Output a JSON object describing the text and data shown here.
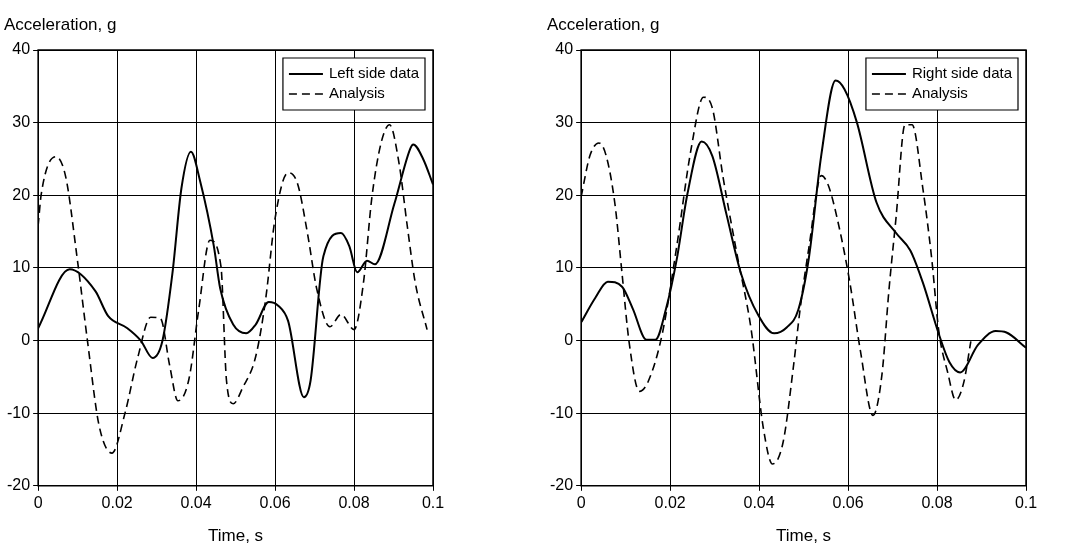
{
  "chart_data": [
    {
      "type": "line",
      "xlabel": "Time, s",
      "ylabel": "Acceleration, g",
      "xlim": [
        0,
        0.1
      ],
      "xticks": [
        0,
        0.02,
        0.04,
        0.06,
        0.08,
        0.1
      ],
      "ylim": [
        -20,
        40
      ],
      "yticks": [
        -20,
        -10,
        0,
        10,
        20,
        30,
        40
      ],
      "grid": true,
      "legend": "top right",
      "marker": "none",
      "series": [
        {
          "name": "Left side data",
          "color": "#000000",
          "line_style": "solid",
          "x": [
            0,
            0.008,
            0.0145,
            0.0177,
            0.0226,
            0.026,
            0.029,
            0.0315,
            0.034,
            0.0363,
            0.0387,
            0.041,
            0.0445,
            0.0461,
            0.0494,
            0.0527,
            0.0551,
            0.0584,
            0.0608,
            0.0633,
            0.0673,
            0.069,
            0.0722,
            0.0767,
            0.0788,
            0.0808,
            0.0833,
            0.0853,
            0.0902,
            0.0943,
            0.095,
            0.0975,
            0.1
          ],
          "values": [
            1.7,
            9.8,
            6.8,
            3.4,
            1.7,
            0,
            -2.4,
            0,
            9.2,
            21,
            26,
            22,
            13,
            7.2,
            2.2,
            1,
            2.2,
            5.3,
            4.8,
            2.7,
            -7.8,
            -5.5,
            11.5,
            14.8,
            13,
            9.4,
            11,
            10.5,
            18.8,
            26.5,
            27,
            25,
            21.5
          ]
        },
        {
          "name": "Analysis",
          "color": "#000000",
          "line_style": "dashed",
          "x": [
            0,
            0.0008,
            0.0045,
            0.007,
            0.0098,
            0.0126,
            0.0154,
            0.0187,
            0.022,
            0.0252,
            0.0285,
            0.031,
            0.0333,
            0.0354,
            0.0382,
            0.0407,
            0.0435,
            0.0463,
            0.0477,
            0.0494,
            0.0518,
            0.0551,
            0.0576,
            0.06,
            0.0633,
            0.0657,
            0.0682,
            0.0706,
            0.0739,
            0.0767,
            0.08,
            0.0824,
            0.0845,
            0.0869,
            0.089,
            0.0914,
            0.0935,
            0.0955,
            0.0985
          ],
          "values": [
            15.8,
            20.2,
            25.3,
            22.5,
            11.7,
            -0.5,
            -11.6,
            -15.5,
            -10,
            -2.4,
            3.2,
            3,
            -3.4,
            -8.3,
            -5.3,
            4.4,
            13.8,
            10.2,
            -5.5,
            -8.7,
            -6.5,
            -2.2,
            5.6,
            16.8,
            23.1,
            21.6,
            14.8,
            7,
            1.9,
            3.6,
            1.5,
            8,
            19.6,
            27.3,
            29.7,
            24.4,
            15.7,
            8,
            1.5
          ]
        }
      ]
    },
    {
      "type": "line",
      "xlabel": "Time, s",
      "ylabel": "Acceleration, g",
      "xlim": [
        0,
        0.1
      ],
      "xticks": [
        0,
        0.02,
        0.04,
        0.06,
        0.08,
        0.1
      ],
      "ylim": [
        -20,
        40
      ],
      "yticks": [
        -20,
        -10,
        0,
        10,
        20,
        30,
        40
      ],
      "grid": true,
      "legend": "top right",
      "marker": "none",
      "series": [
        {
          "name": "Right side data",
          "color": "#000000",
          "line_style": "solid",
          "x": [
            0,
            0.0032,
            0.006,
            0.0092,
            0.0116,
            0.0147,
            0.0167,
            0.0191,
            0.0215,
            0.0239,
            0.0271,
            0.0295,
            0.0327,
            0.0359,
            0.0398,
            0.0434,
            0.0462,
            0.0488,
            0.0512,
            0.054,
            0.0572,
            0.0592,
            0.062,
            0.0664,
            0.0708,
            0.074,
            0.0768,
            0.0804,
            0.0828,
            0.0852,
            0.0892,
            0.0932,
            0.0956,
            0.1
          ],
          "values": [
            2.5,
            5.9,
            8.1,
            7.4,
            4.4,
            0.1,
            0.1,
            4.4,
            11.2,
            20.2,
            27.4,
            25.4,
            17.3,
            9.3,
            3.5,
            1,
            1.8,
            4.2,
            11.4,
            25.6,
            35.8,
            34.6,
            30,
            19,
            14.8,
            12.4,
            8,
            0.9,
            -3,
            -4.4,
            -0.6,
            1.3,
            1.1,
            -1
          ]
        },
        {
          "name": "Analysis",
          "color": "#000000",
          "line_style": "dashed",
          "x": [
            0,
            0.002,
            0.004,
            0.0056,
            0.0076,
            0.0092,
            0.0108,
            0.0131,
            0.0151,
            0.0183,
            0.0215,
            0.0247,
            0.0275,
            0.0295,
            0.0319,
            0.035,
            0.0382,
            0.041,
            0.043,
            0.0454,
            0.0478,
            0.0492,
            0.0512,
            0.054,
            0.0556,
            0.058,
            0.0604,
            0.0628,
            0.0656,
            0.0676,
            0.0692,
            0.0708,
            0.0728,
            0.0744,
            0.0768,
            0.0788,
            0.0804,
            0.0824,
            0.0842,
            0.086,
            0.0876
          ],
          "values": [
            19.8,
            25.5,
            27.2,
            25.5,
            18.8,
            9.2,
            -0.3,
            -7,
            -5.6,
            1.1,
            13,
            26.3,
            33.5,
            32,
            22.5,
            12,
            1.6,
            -12.2,
            -17,
            -14,
            -3.2,
            4.2,
            12.8,
            22.7,
            21.3,
            15.6,
            8,
            -1.5,
            -10.3,
            -4.8,
            7,
            17,
            29.7,
            29.7,
            21,
            11.3,
            1.3,
            -4.4,
            -8.2,
            -5.8,
            -0.1
          ]
        }
      ]
    }
  ]
}
